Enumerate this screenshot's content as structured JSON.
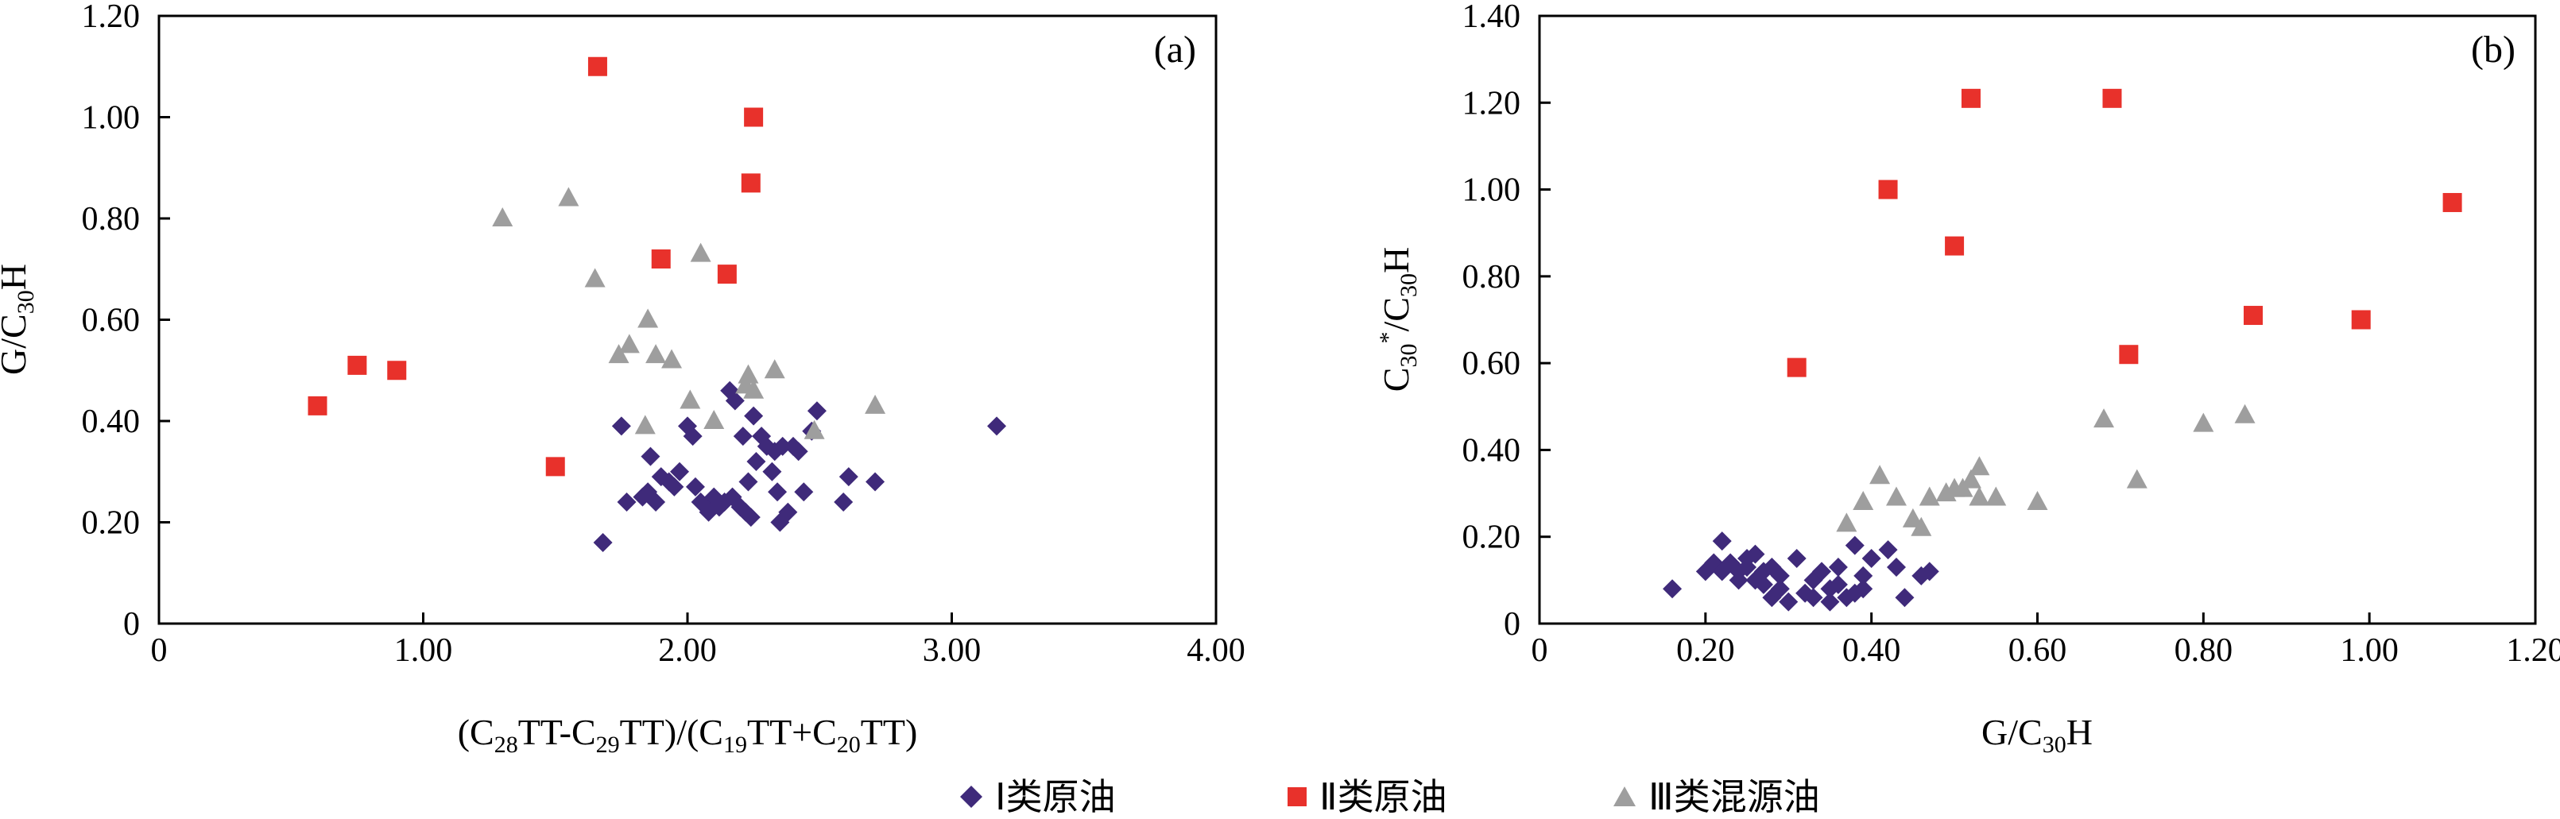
{
  "chart_data": [
    {
      "type": "scatter",
      "panel_label": "(a)",
      "xlabel": "(C28TT-C29TT)/(C19TT+C20TT)",
      "ylabel": "G/C30H",
      "xlim": [
        0,
        4
      ],
      "ylim": [
        0,
        1.2
      ],
      "x_ticks": [
        "0",
        "1.00",
        "2.00",
        "3.00",
        "4.00"
      ],
      "y_ticks": [
        "0",
        "0.20",
        "0.40",
        "0.60",
        "0.80",
        "1.00",
        "1.20"
      ],
      "grid": false,
      "series": [
        {
          "name": "Ⅰ类原油",
          "marker": "diamond",
          "color": "#3f2a7a",
          "points": [
            [
              1.68,
              0.16
            ],
            [
              1.75,
              0.39
            ],
            [
              1.77,
              0.24
            ],
            [
              1.83,
              0.25
            ],
            [
              1.85,
              0.26
            ],
            [
              1.86,
              0.33
            ],
            [
              1.88,
              0.24
            ],
            [
              1.9,
              0.29
            ],
            [
              1.93,
              0.28
            ],
            [
              1.95,
              0.27
            ],
            [
              1.97,
              0.3
            ],
            [
              2.0,
              0.39
            ],
            [
              2.02,
              0.37
            ],
            [
              2.03,
              0.27
            ],
            [
              2.05,
              0.24
            ],
            [
              2.07,
              0.23
            ],
            [
              2.08,
              0.22
            ],
            [
              2.1,
              0.25
            ],
            [
              2.12,
              0.23
            ],
            [
              2.14,
              0.24
            ],
            [
              2.16,
              0.46
            ],
            [
              2.17,
              0.25
            ],
            [
              2.18,
              0.44
            ],
            [
              2.2,
              0.23
            ],
            [
              2.21,
              0.37
            ],
            [
              2.22,
              0.22
            ],
            [
              2.23,
              0.28
            ],
            [
              2.24,
              0.21
            ],
            [
              2.25,
              0.41
            ],
            [
              2.26,
              0.32
            ],
            [
              2.28,
              0.37
            ],
            [
              2.3,
              0.35
            ],
            [
              2.32,
              0.3
            ],
            [
              2.33,
              0.34
            ],
            [
              2.34,
              0.26
            ],
            [
              2.35,
              0.2
            ],
            [
              2.36,
              0.35
            ],
            [
              2.38,
              0.22
            ],
            [
              2.4,
              0.35
            ],
            [
              2.42,
              0.34
            ],
            [
              2.44,
              0.26
            ],
            [
              2.47,
              0.38
            ],
            [
              2.49,
              0.42
            ],
            [
              2.59,
              0.24
            ],
            [
              2.61,
              0.29
            ],
            [
              2.71,
              0.28
            ],
            [
              3.17,
              0.39
            ]
          ]
        },
        {
          "name": "Ⅱ类原油",
          "marker": "square",
          "color": "#e8312b",
          "points": [
            [
              0.6,
              0.43
            ],
            [
              0.75,
              0.51
            ],
            [
              0.9,
              0.5
            ],
            [
              1.5,
              0.31
            ],
            [
              1.66,
              1.1
            ],
            [
              1.9,
              0.72
            ],
            [
              2.15,
              0.69
            ],
            [
              2.24,
              0.87
            ],
            [
              2.25,
              1.0
            ]
          ]
        },
        {
          "name": "Ⅲ类混源油",
          "marker": "triangle",
          "color": "#9e9e9e",
          "points": [
            [
              1.3,
              0.8
            ],
            [
              1.55,
              0.84
            ],
            [
              1.65,
              0.68
            ],
            [
              1.74,
              0.53
            ],
            [
              1.78,
              0.55
            ],
            [
              1.84,
              0.39
            ],
            [
              1.85,
              0.6
            ],
            [
              1.88,
              0.53
            ],
            [
              1.94,
              0.52
            ],
            [
              2.01,
              0.44
            ],
            [
              2.05,
              0.73
            ],
            [
              2.1,
              0.4
            ],
            [
              2.22,
              0.47
            ],
            [
              2.23,
              0.49
            ],
            [
              2.25,
              0.46
            ],
            [
              2.33,
              0.5
            ],
            [
              2.48,
              0.38
            ],
            [
              2.71,
              0.43
            ]
          ]
        }
      ]
    },
    {
      "type": "scatter",
      "panel_label": "(b)",
      "xlabel": "G/C30H",
      "ylabel": "C30*/C30H",
      "xlim": [
        0,
        1.2
      ],
      "ylim": [
        0,
        1.4
      ],
      "x_ticks": [
        "0",
        "0.20",
        "0.40",
        "0.60",
        "0.80",
        "1.00",
        "1.20"
      ],
      "y_ticks": [
        "0",
        "0.20",
        "0.40",
        "0.60",
        "0.80",
        "1.00",
        "1.20",
        "1.40"
      ],
      "grid": false,
      "series": [
        {
          "name": "Ⅰ类原油",
          "marker": "diamond",
          "color": "#3f2a7a",
          "points": [
            [
              0.16,
              0.08
            ],
            [
              0.2,
              0.12
            ],
            [
              0.21,
              0.14
            ],
            [
              0.22,
              0.19
            ],
            [
              0.22,
              0.12
            ],
            [
              0.23,
              0.14
            ],
            [
              0.24,
              0.1
            ],
            [
              0.24,
              0.12
            ],
            [
              0.25,
              0.15
            ],
            [
              0.25,
              0.13
            ],
            [
              0.26,
              0.1
            ],
            [
              0.26,
              0.16
            ],
            [
              0.27,
              0.12
            ],
            [
              0.27,
              0.09
            ],
            [
              0.28,
              0.13
            ],
            [
              0.28,
              0.06
            ],
            [
              0.29,
              0.11
            ],
            [
              0.29,
              0.08
            ],
            [
              0.3,
              0.05
            ],
            [
              0.31,
              0.15
            ],
            [
              0.32,
              0.07
            ],
            [
              0.33,
              0.06
            ],
            [
              0.33,
              0.1
            ],
            [
              0.34,
              0.12
            ],
            [
              0.35,
              0.08
            ],
            [
              0.35,
              0.05
            ],
            [
              0.36,
              0.09
            ],
            [
              0.36,
              0.13
            ],
            [
              0.37,
              0.06
            ],
            [
              0.38,
              0.07
            ],
            [
              0.38,
              0.18
            ],
            [
              0.39,
              0.11
            ],
            [
              0.39,
              0.08
            ],
            [
              0.4,
              0.15
            ],
            [
              0.42,
              0.17
            ],
            [
              0.43,
              0.13
            ],
            [
              0.44,
              0.06
            ],
            [
              0.46,
              0.11
            ],
            [
              0.47,
              0.12
            ]
          ]
        },
        {
          "name": "Ⅱ类原油",
          "marker": "square",
          "color": "#e8312b",
          "points": [
            [
              0.31,
              0.59
            ],
            [
              0.42,
              1.0
            ],
            [
              0.5,
              0.87
            ],
            [
              0.52,
              1.21
            ],
            [
              0.69,
              1.21
            ],
            [
              0.71,
              0.62
            ],
            [
              0.86,
              0.71
            ],
            [
              0.99,
              0.7
            ],
            [
              1.1,
              0.97
            ]
          ]
        },
        {
          "name": "Ⅲ类混源油",
          "marker": "triangle",
          "color": "#9e9e9e",
          "points": [
            [
              0.37,
              0.23
            ],
            [
              0.39,
              0.28
            ],
            [
              0.41,
              0.34
            ],
            [
              0.43,
              0.29
            ],
            [
              0.45,
              0.24
            ],
            [
              0.46,
              0.22
            ],
            [
              0.47,
              0.29
            ],
            [
              0.49,
              0.3
            ],
            [
              0.5,
              0.31
            ],
            [
              0.51,
              0.31
            ],
            [
              0.52,
              0.33
            ],
            [
              0.53,
              0.36
            ],
            [
              0.53,
              0.29
            ],
            [
              0.55,
              0.29
            ],
            [
              0.6,
              0.28
            ],
            [
              0.68,
              0.47
            ],
            [
              0.72,
              0.33
            ],
            [
              0.8,
              0.46
            ],
            [
              0.85,
              0.48
            ]
          ]
        }
      ]
    }
  ],
  "legend": {
    "position": "bottom-center",
    "items": [
      {
        "label": "Ⅰ类原油",
        "marker": "diamond",
        "color": "#3f2a7a"
      },
      {
        "label": "Ⅱ类原油",
        "marker": "square",
        "color": "#e8312b"
      },
      {
        "label": "Ⅲ类混源油",
        "marker": "triangle",
        "color": "#9e9e9e"
      }
    ]
  }
}
